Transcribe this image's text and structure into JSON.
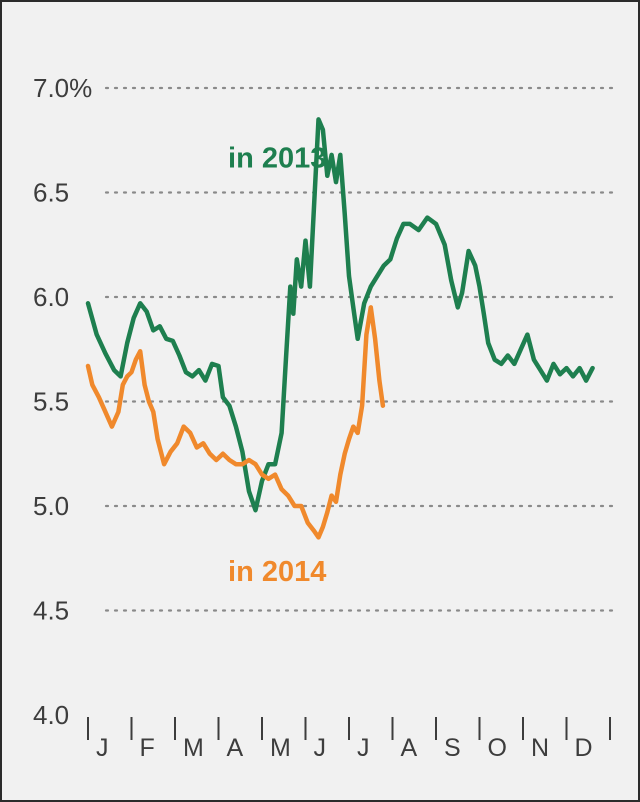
{
  "chart_data": {
    "type": "line",
    "title": "",
    "xlabel": "",
    "ylabel": "",
    "ylim": [
      4.0,
      7.0
    ],
    "xlim": [
      0,
      12
    ],
    "grid": true,
    "y_ticks": [
      {
        "value": 7.0,
        "label": "7.0%"
      },
      {
        "value": 6.5,
        "label": "6.5"
      },
      {
        "value": 6.0,
        "label": "6.0"
      },
      {
        "value": 5.5,
        "label": "5.5"
      },
      {
        "value": 5.0,
        "label": "5.0"
      },
      {
        "value": 4.5,
        "label": "4.5"
      },
      {
        "value": 4.0,
        "label": "4.0"
      }
    ],
    "months": [
      "J",
      "F",
      "M",
      "A",
      "M",
      "J",
      "J",
      "A",
      "S",
      "O",
      "N",
      "D"
    ],
    "series": [
      {
        "name": "in 2013",
        "color": "#1e7f4f",
        "points": [
          [
            0.0,
            5.97
          ],
          [
            0.2,
            5.82
          ],
          [
            0.4,
            5.73
          ],
          [
            0.6,
            5.65
          ],
          [
            0.75,
            5.62
          ],
          [
            0.9,
            5.78
          ],
          [
            1.05,
            5.9
          ],
          [
            1.2,
            5.97
          ],
          [
            1.35,
            5.93
          ],
          [
            1.5,
            5.84
          ],
          [
            1.65,
            5.86
          ],
          [
            1.8,
            5.8
          ],
          [
            1.95,
            5.79
          ],
          [
            2.1,
            5.72
          ],
          [
            2.25,
            5.64
          ],
          [
            2.4,
            5.62
          ],
          [
            2.55,
            5.65
          ],
          [
            2.7,
            5.6
          ],
          [
            2.85,
            5.68
          ],
          [
            3.0,
            5.67
          ],
          [
            3.1,
            5.52
          ],
          [
            3.25,
            5.48
          ],
          [
            3.4,
            5.38
          ],
          [
            3.55,
            5.26
          ],
          [
            3.7,
            5.07
          ],
          [
            3.85,
            4.98
          ],
          [
            4.0,
            5.12
          ],
          [
            4.15,
            5.2
          ],
          [
            4.3,
            5.2
          ],
          [
            4.45,
            5.35
          ],
          [
            4.55,
            5.7
          ],
          [
            4.65,
            6.05
          ],
          [
            4.72,
            5.92
          ],
          [
            4.8,
            6.18
          ],
          [
            4.9,
            6.05
          ],
          [
            5.0,
            6.27
          ],
          [
            5.1,
            6.05
          ],
          [
            5.2,
            6.45
          ],
          [
            5.3,
            6.85
          ],
          [
            5.4,
            6.8
          ],
          [
            5.5,
            6.58
          ],
          [
            5.6,
            6.68
          ],
          [
            5.7,
            6.55
          ],
          [
            5.8,
            6.68
          ],
          [
            5.9,
            6.4
          ],
          [
            6.0,
            6.1
          ],
          [
            6.1,
            5.95
          ],
          [
            6.2,
            5.8
          ],
          [
            6.35,
            5.97
          ],
          [
            6.5,
            6.05
          ],
          [
            6.65,
            6.1
          ],
          [
            6.8,
            6.15
          ],
          [
            6.95,
            6.18
          ],
          [
            7.1,
            6.28
          ],
          [
            7.25,
            6.35
          ],
          [
            7.4,
            6.35
          ],
          [
            7.6,
            6.32
          ],
          [
            7.8,
            6.38
          ],
          [
            8.0,
            6.35
          ],
          [
            8.2,
            6.25
          ],
          [
            8.35,
            6.08
          ],
          [
            8.5,
            5.95
          ],
          [
            8.6,
            6.02
          ],
          [
            8.75,
            6.22
          ],
          [
            8.9,
            6.15
          ],
          [
            9.0,
            6.05
          ],
          [
            9.1,
            5.92
          ],
          [
            9.2,
            5.78
          ],
          [
            9.35,
            5.7
          ],
          [
            9.5,
            5.68
          ],
          [
            9.65,
            5.72
          ],
          [
            9.8,
            5.68
          ],
          [
            9.95,
            5.75
          ],
          [
            10.1,
            5.82
          ],
          [
            10.25,
            5.7
          ],
          [
            10.4,
            5.65
          ],
          [
            10.55,
            5.6
          ],
          [
            10.7,
            5.68
          ],
          [
            10.85,
            5.63
          ],
          [
            11.0,
            5.66
          ],
          [
            11.15,
            5.62
          ],
          [
            11.3,
            5.66
          ],
          [
            11.45,
            5.6
          ],
          [
            11.6,
            5.66
          ]
        ]
      },
      {
        "name": "in 2014",
        "color": "#f0892c",
        "points": [
          [
            0.0,
            5.67
          ],
          [
            0.1,
            5.58
          ],
          [
            0.25,
            5.52
          ],
          [
            0.4,
            5.45
          ],
          [
            0.55,
            5.38
          ],
          [
            0.7,
            5.45
          ],
          [
            0.8,
            5.58
          ],
          [
            0.9,
            5.62
          ],
          [
            1.0,
            5.64
          ],
          [
            1.1,
            5.7
          ],
          [
            1.2,
            5.74
          ],
          [
            1.3,
            5.58
          ],
          [
            1.4,
            5.5
          ],
          [
            1.5,
            5.45
          ],
          [
            1.6,
            5.32
          ],
          [
            1.75,
            5.2
          ],
          [
            1.9,
            5.26
          ],
          [
            2.05,
            5.3
          ],
          [
            2.2,
            5.38
          ],
          [
            2.35,
            5.35
          ],
          [
            2.5,
            5.28
          ],
          [
            2.65,
            5.3
          ],
          [
            2.8,
            5.25
          ],
          [
            2.95,
            5.22
          ],
          [
            3.1,
            5.25
          ],
          [
            3.25,
            5.22
          ],
          [
            3.4,
            5.2
          ],
          [
            3.55,
            5.2
          ],
          [
            3.7,
            5.22
          ],
          [
            3.85,
            5.2
          ],
          [
            4.0,
            5.15
          ],
          [
            4.15,
            5.13
          ],
          [
            4.3,
            5.15
          ],
          [
            4.45,
            5.08
          ],
          [
            4.6,
            5.05
          ],
          [
            4.75,
            5.0
          ],
          [
            4.9,
            5.0
          ],
          [
            5.05,
            4.92
          ],
          [
            5.2,
            4.88
          ],
          [
            5.3,
            4.85
          ],
          [
            5.4,
            4.9
          ],
          [
            5.5,
            4.97
          ],
          [
            5.6,
            5.05
          ],
          [
            5.7,
            5.02
          ],
          [
            5.8,
            5.15
          ],
          [
            5.9,
            5.25
          ],
          [
            6.0,
            5.32
          ],
          [
            6.1,
            5.38
          ],
          [
            6.2,
            5.35
          ],
          [
            6.3,
            5.48
          ],
          [
            6.4,
            5.82
          ],
          [
            6.5,
            5.95
          ],
          [
            6.6,
            5.8
          ],
          [
            6.7,
            5.6
          ],
          [
            6.78,
            5.48
          ]
        ]
      }
    ],
    "annotations": [
      {
        "series": "in 2013",
        "text": "in 2013",
        "x": 4.35,
        "y": 6.62
      },
      {
        "series": "in 2014",
        "text": "in 2014",
        "x": 4.35,
        "y": 4.64
      }
    ]
  }
}
